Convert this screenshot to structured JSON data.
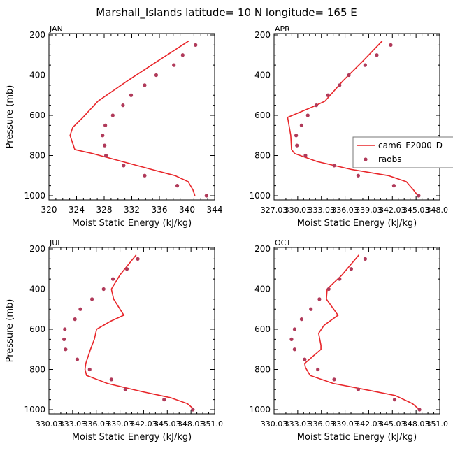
{
  "title": "Marshall_Islands  latitude= 10 N longitude= 165 E",
  "legend": {
    "model_label": "cam6_F2000_D",
    "obs_label": "raobs"
  },
  "colors": {
    "model": "#e8262a",
    "obs": "#b03a5a",
    "axis": "#000000"
  },
  "chart_data": [
    {
      "type": "line",
      "panel": "JAN",
      "title": "JAN",
      "xlabel": "Moist Static Energy (kJ/kg)",
      "ylabel": "Pressure (mb)",
      "xlim": [
        320,
        344
      ],
      "ylim": [
        1000,
        200
      ],
      "xticks": [
        "320",
        "324",
        "328",
        "332",
        "336",
        "340",
        "344"
      ],
      "yticks": [
        "200",
        "400",
        "600",
        "800",
        "1000"
      ],
      "series": [
        {
          "name": "cam6_F2000_D",
          "kind": "line",
          "x": [
            340.4,
            335.8,
            331.3,
            327.0,
            324.8,
            323.3,
            322.9,
            323.6,
            326.2,
            330.6,
            335.0,
            338.4,
            340.3,
            341.0,
            341.3
          ],
          "y": [
            230,
            330,
            430,
            530,
            610,
            660,
            700,
            770,
            790,
            830,
            870,
            900,
            930,
            970,
            1000
          ]
        },
        {
          "name": "raobs",
          "kind": "scatter",
          "x": [
            341.4,
            339.5,
            338.2,
            335.6,
            333.9,
            331.9,
            330.7,
            329.2,
            328.1,
            327.7,
            328.0,
            328.2,
            330.8,
            333.9,
            338.7,
            343.0
          ],
          "y": [
            250,
            300,
            350,
            400,
            450,
            500,
            550,
            600,
            650,
            700,
            750,
            800,
            850,
            900,
            950,
            1000
          ]
        }
      ]
    },
    {
      "type": "line",
      "panel": "APR",
      "title": "APR",
      "xlabel": "Moist Static Energy (kJ/kg)",
      "ylabel": "",
      "xlim": [
        327.03,
        348.03
      ],
      "ylim": [
        1000,
        200
      ],
      "xticks": [
        "327.03",
        "330.03",
        "333.03",
        "336.03",
        "339.03",
        "342.03",
        "345.03",
        "348.0"
      ],
      "yticks": [
        "200",
        "400",
        "600",
        "800",
        "1000"
      ],
      "series": [
        {
          "name": "cam6_F2000_D",
          "kind": "line",
          "x": [
            340.8,
            338.3,
            335.7,
            333.4,
            331.7,
            328.6,
            329.0,
            329.1,
            329.5,
            332.4,
            336.9,
            341.6,
            343.9,
            344.8,
            345.4
          ],
          "y": [
            230,
            330,
            430,
            530,
            560,
            610,
            700,
            770,
            790,
            830,
            870,
            900,
            930,
            970,
            1000
          ]
        },
        {
          "name": "raobs",
          "kind": "scatter",
          "x": [
            341.9,
            340.1,
            338.6,
            336.5,
            335.3,
            333.8,
            332.3,
            331.2,
            330.4,
            329.7,
            329.8,
            330.9,
            334.6,
            337.7,
            342.3,
            345.5
          ],
          "y": [
            250,
            300,
            350,
            400,
            450,
            500,
            550,
            600,
            650,
            700,
            750,
            800,
            850,
            900,
            950,
            1000
          ]
        }
      ]
    },
    {
      "type": "line",
      "panel": "JUL",
      "title": "JUL",
      "xlabel": "Moist Static Energy (kJ/kg)",
      "ylabel": "Pressure (mb)",
      "xlim": [
        330.03,
        351.03
      ],
      "ylim": [
        1000,
        200
      ],
      "xticks": [
        "330.03",
        "333.03",
        "336.03",
        "339.03",
        "342.03",
        "345.03",
        "348.03",
        "351.0"
      ],
      "yticks": [
        "200",
        "400",
        "600",
        "800",
        "1000"
      ],
      "series": [
        {
          "name": "cam6_F2000_D",
          "kind": "line",
          "x": [
            341.1,
            339.0,
            337.9,
            338.2,
            339.5,
            337.8,
            336.0,
            335.7,
            335.2,
            334.6,
            334.5,
            334.7,
            337.4,
            341.8,
            345.5,
            347.7,
            348.6
          ],
          "y": [
            230,
            330,
            400,
            450,
            530,
            560,
            600,
            650,
            700,
            770,
            800,
            830,
            870,
            910,
            940,
            970,
            1000
          ]
        },
        {
          "name": "raobs",
          "kind": "scatter",
          "x": [
            341.3,
            339.9,
            338.1,
            336.9,
            335.4,
            333.9,
            333.2,
            331.9,
            331.8,
            332.0,
            333.5,
            335.1,
            337.9,
            339.7,
            344.7,
            348.4
          ],
          "y": [
            250,
            300,
            350,
            400,
            450,
            500,
            550,
            600,
            650,
            700,
            750,
            800,
            850,
            900,
            950,
            1000
          ]
        }
      ]
    },
    {
      "type": "line",
      "panel": "OCT",
      "title": "OCT",
      "xlabel": "Moist Static Energy (kJ/kg)",
      "ylabel": "",
      "xlim": [
        330.03,
        351.03
      ],
      "ylim": [
        1000,
        200
      ],
      "xticks": [
        "330.03",
        "333.03",
        "336.03",
        "339.03",
        "342.03",
        "345.03",
        "348.03",
        "351.0"
      ],
      "yticks": [
        "200",
        "400",
        "600",
        "800",
        "1000"
      ],
      "series": [
        {
          "name": "cam6_F2000_D",
          "kind": "line",
          "x": [
            340.8,
            338.6,
            336.7,
            336.6,
            338.1,
            336.3,
            335.6,
            335.9,
            335.9,
            333.8,
            333.9,
            334.5,
            337.5,
            341.6,
            345.5,
            347.7,
            348.6
          ],
          "y": [
            230,
            330,
            400,
            450,
            530,
            580,
            620,
            680,
            700,
            770,
            790,
            830,
            870,
            900,
            930,
            970,
            1000
          ]
        },
        {
          "name": "raobs",
          "kind": "scatter",
          "x": [
            341.6,
            339.8,
            338.3,
            336.9,
            335.7,
            334.6,
            333.4,
            332.5,
            332.1,
            332.5,
            333.8,
            335.5,
            337.6,
            340.7,
            345.4,
            348.6
          ],
          "y": [
            250,
            300,
            350,
            400,
            450,
            500,
            550,
            600,
            650,
            700,
            750,
            800,
            850,
            900,
            950,
            1000
          ]
        }
      ]
    }
  ]
}
